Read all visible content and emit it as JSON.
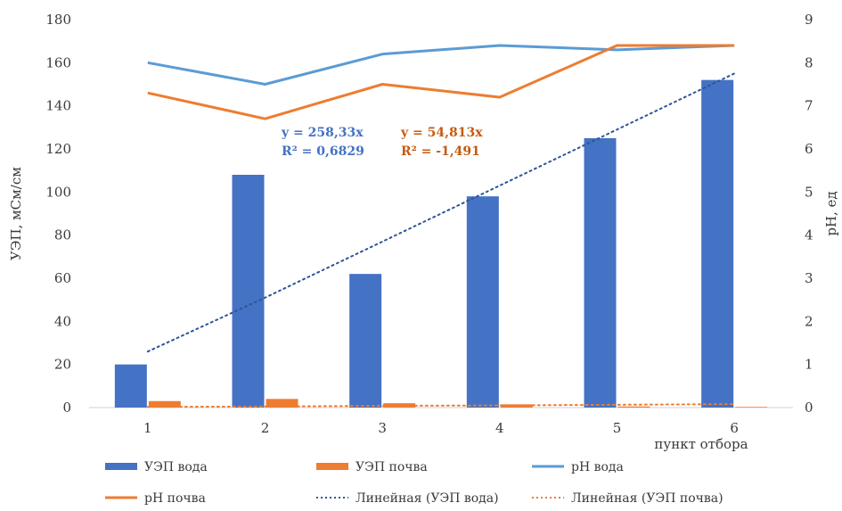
{
  "chart_data": {
    "type": "bar",
    "categories": [
      "1",
      "2",
      "3",
      "4",
      "5",
      "6"
    ],
    "xlabel": "пункт отбора",
    "ylabel": "УЭП, мСм/см",
    "ylabel_right": "pH, ед",
    "ylim": [
      0,
      180
    ],
    "y_ticks": [
      0,
      20,
      40,
      60,
      80,
      100,
      120,
      140,
      160,
      180
    ],
    "ylim_right": [
      0,
      9
    ],
    "y_ticks_right": [
      0,
      1,
      2,
      3,
      4,
      5,
      6,
      7,
      8,
      9
    ],
    "grid": false,
    "legend_position": "bottom",
    "series": [
      {
        "name": "УЭП вода",
        "type": "bar",
        "axis": "left",
        "color": "#4472C4",
        "values": [
          20,
          108,
          62,
          98,
          125,
          152
        ]
      },
      {
        "name": "УЭП почва",
        "type": "bar",
        "axis": "left",
        "color": "#ED7D31",
        "values": [
          3,
          4,
          2,
          1.5,
          0.5,
          0.3
        ]
      },
      {
        "name": "pH вода",
        "type": "line",
        "axis": "right",
        "color": "#5B9BD5",
        "values": [
          8.0,
          7.5,
          8.2,
          8.4,
          8.3,
          8.4
        ]
      },
      {
        "name": "pH почва",
        "type": "line",
        "axis": "right",
        "color": "#ED7D31",
        "values": [
          7.3,
          6.7,
          7.5,
          7.2,
          8.4,
          8.4
        ]
      },
      {
        "name": "Линейная (УЭП вода)",
        "type": "trendline",
        "axis": "left",
        "color": "#2F5597",
        "dash": "dotted",
        "values": [
          26,
          51,
          77,
          103,
          129,
          155
        ]
      },
      {
        "name": "Линейная (УЭП почва)",
        "type": "trendline",
        "axis": "left",
        "color": "#ED7D31",
        "dash": "dotted",
        "values": [
          0.3,
          0.5,
          0.8,
          1.0,
          1.3,
          1.6
        ]
      }
    ],
    "annotations": [
      {
        "series": "Линейная (УЭП вода)",
        "color": "#4472C4",
        "line1": "y = 258,33x",
        "line2": "R² = 0,6829"
      },
      {
        "series": "Линейная (УЭП почва)",
        "color": "#C55A11",
        "line1": "y = 54,813x",
        "line2": "R² = -1,491"
      }
    ]
  }
}
